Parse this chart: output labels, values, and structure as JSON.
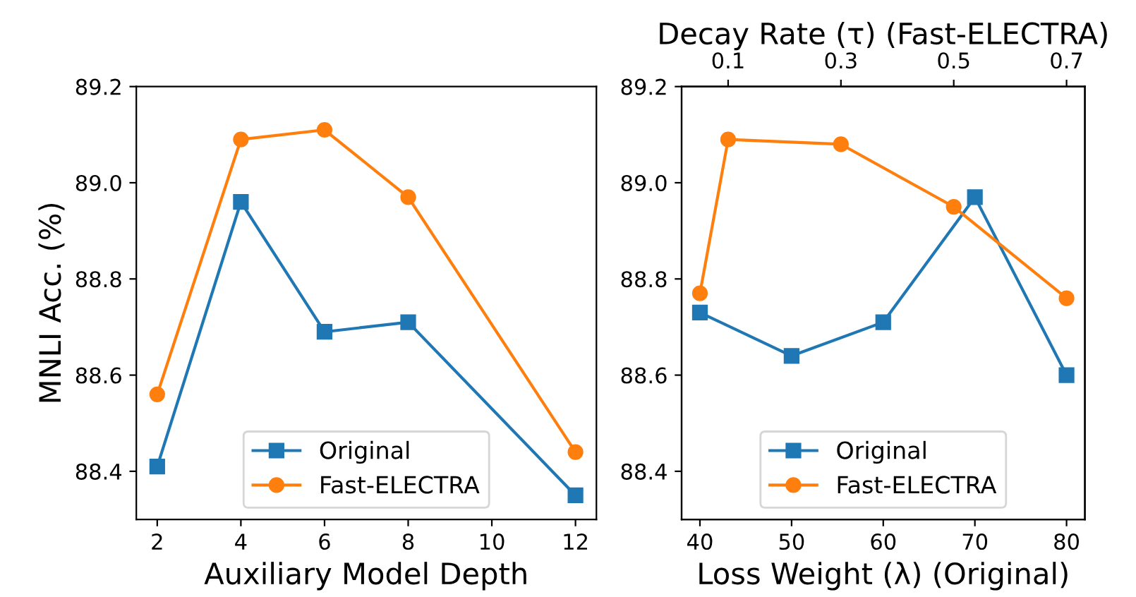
{
  "chart_data": [
    {
      "type": "line",
      "xlabel": "Auxiliary Model Depth",
      "ylabel": "MNLI Acc. (%)",
      "xlim": [
        1.5,
        12.5
      ],
      "xticks": [
        2,
        4,
        6,
        8,
        10,
        12
      ],
      "ylim": [
        88.3,
        89.2
      ],
      "yticks": [
        88.4,
        88.6,
        88.8,
        {
          "value": 89,
          "label": "89.0"
        },
        89.2
      ],
      "legend": "bottom",
      "series": [
        {
          "name": "Original",
          "color": "#1f77b4",
          "marker": "square",
          "x": [
            2,
            4,
            6,
            8,
            12
          ],
          "values": [
            88.41,
            88.96,
            88.69,
            88.71,
            88.35
          ]
        },
        {
          "name": "Fast-ELECTRA",
          "color": "#ff7f0e",
          "marker": "circle",
          "x": [
            2,
            4,
            6,
            8,
            12
          ],
          "values": [
            88.56,
            89.09,
            89.11,
            88.97,
            88.44
          ]
        }
      ]
    },
    {
      "type": "line",
      "xlabel": "Loss Weight (λ) (Original)",
      "x2label": "Decay Rate (τ) (Fast-ELECTRA)",
      "xlim": [
        38,
        82
      ],
      "xticks": [
        40,
        50,
        60,
        70,
        80
      ],
      "x2lim": [
        0.0175,
        0.7325
      ],
      "x2ticks": [
        0.1,
        0.3,
        0.5,
        0.7
      ],
      "ylim": [
        88.3,
        89.2
      ],
      "yticks": [
        88.4,
        88.6,
        88.8,
        {
          "value": 89,
          "label": "89.0"
        },
        89.2
      ],
      "legend": "bottom",
      "series": [
        {
          "name": "Original",
          "color": "#1f77b4",
          "marker": "square",
          "x": [
            40,
            50,
            60,
            70,
            80
          ],
          "values": [
            88.73,
            88.64,
            88.71,
            88.97,
            88.6
          ]
        },
        {
          "name": "Fast-ELECTRA",
          "color": "#ff7f0e",
          "marker": "circle",
          "axis": "x2",
          "x": [
            0.05,
            0.1,
            0.3,
            0.5,
            0.7
          ],
          "values": [
            88.77,
            89.09,
            89.08,
            88.95,
            88.76
          ]
        }
      ]
    }
  ]
}
